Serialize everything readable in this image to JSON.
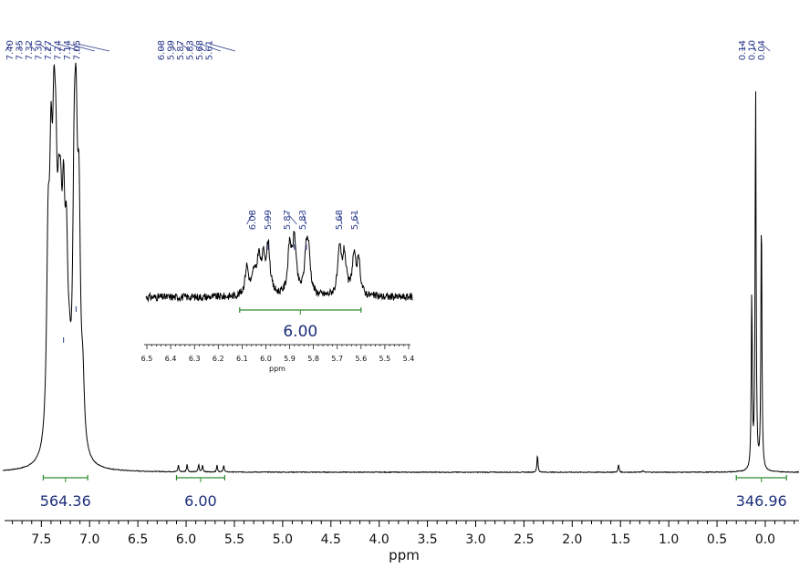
{
  "chart_data": {
    "type": "line",
    "xlabel": "ppm",
    "xlim": [
      7.9,
      -0.35
    ],
    "x_ticks": [
      "7.5",
      "7.0",
      "6.5",
      "6.0",
      "5.5",
      "5.0",
      "4.5",
      "4.0",
      "3.5",
      "3.0",
      "2.5",
      "2.0",
      "1.5",
      "1.0",
      "0.5",
      "0.0"
    ],
    "peak_label_groups": [
      {
        "labels": [
          "7.40",
          "7.35",
          "7.32",
          "7.30",
          "7.27",
          "7.24",
          "7.14",
          "7.05"
        ]
      },
      {
        "labels": [
          "6.08",
          "5.99",
          "5.87",
          "5.83",
          "5.68",
          "5.61"
        ]
      },
      {
        "labels": [
          "0.14",
          "0.10",
          "0.04"
        ]
      }
    ],
    "integrals": [
      {
        "from": 7.48,
        "to": 7.02,
        "value": "564.36"
      },
      {
        "from": 6.1,
        "to": 5.6,
        "value": "6.00"
      },
      {
        "from": 0.3,
        "to": -0.22,
        "value": "346.96"
      }
    ],
    "peaks": [
      {
        "ppm": 7.43,
        "height": 0.47
      },
      {
        "ppm": 7.4,
        "height": 0.58
      },
      {
        "ppm": 7.37,
        "height": 0.56
      },
      {
        "ppm": 7.35,
        "height": 0.45
      },
      {
        "ppm": 7.32,
        "height": 0.34
      },
      {
        "ppm": 7.3,
        "height": 0.36
      },
      {
        "ppm": 7.27,
        "height": 0.47
      },
      {
        "ppm": 7.24,
        "height": 0.4
      },
      {
        "ppm": 7.21,
        "height": 0.12
      },
      {
        "ppm": 7.16,
        "height": 0.55
      },
      {
        "ppm": 7.14,
        "height": 0.6
      },
      {
        "ppm": 7.11,
        "height": 0.54
      },
      {
        "ppm": 7.07,
        "height": 0.15
      },
      {
        "ppm": 6.08,
        "height": 0.018
      },
      {
        "ppm": 5.99,
        "height": 0.02
      },
      {
        "ppm": 5.87,
        "height": 0.02
      },
      {
        "ppm": 5.83,
        "height": 0.018
      },
      {
        "ppm": 5.68,
        "height": 0.018
      },
      {
        "ppm": 5.61,
        "height": 0.018
      },
      {
        "ppm": 2.36,
        "height": 0.045
      },
      {
        "ppm": 1.52,
        "height": 0.02
      },
      {
        "ppm": 1.27,
        "height": 0.005
      },
      {
        "ppm": 0.14,
        "height": 0.46
      },
      {
        "ppm": 0.1,
        "height": 1.0
      },
      {
        "ppm": 0.04,
        "height": 0.68
      }
    ],
    "inset": {
      "xlabel": "ppm",
      "xlim": [
        6.5,
        5.4
      ],
      "x_ticks": [
        "6.5",
        "6.4",
        "6.3",
        "6.2",
        "6.1",
        "6.0",
        "5.9",
        "5.8",
        "5.7",
        "5.6",
        "5.5",
        "5.4"
      ],
      "peak_labels": [
        "6.08",
        "5.99",
        "5.87",
        "5.83",
        "5.68",
        "5.61"
      ],
      "integral": {
        "from": 6.11,
        "to": 5.6,
        "value": "6.00"
      },
      "peaks": [
        {
          "ppm": 6.08,
          "height": 0.45
        },
        {
          "ppm": 6.05,
          "height": 0.3
        },
        {
          "ppm": 6.03,
          "height": 0.55
        },
        {
          "ppm": 6.01,
          "height": 0.5
        },
        {
          "ppm": 5.99,
          "height": 0.75
        },
        {
          "ppm": 5.9,
          "height": 0.75
        },
        {
          "ppm": 5.88,
          "height": 0.85
        },
        {
          "ppm": 5.83,
          "height": 0.62
        },
        {
          "ppm": 5.82,
          "height": 0.55
        },
        {
          "ppm": 5.69,
          "height": 0.7
        },
        {
          "ppm": 5.67,
          "height": 0.6
        },
        {
          "ppm": 5.63,
          "height": 0.58
        },
        {
          "ppm": 5.61,
          "height": 0.5
        }
      ]
    }
  },
  "colors": {
    "spectrum": "#000000",
    "peak_label": "#2b3a8c",
    "integral": "#2e8b2e",
    "integral_text": "#1c2e7a"
  }
}
